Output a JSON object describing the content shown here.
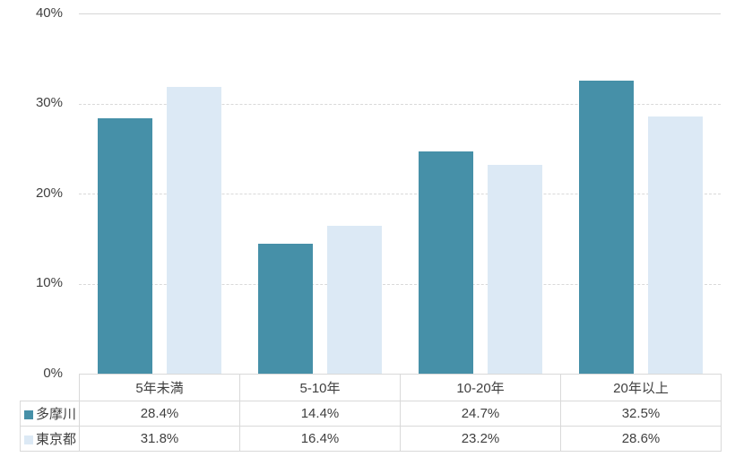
{
  "colors": {
    "series1": "#4690A8",
    "series2": "#DCE9F5",
    "gridline": "#D9D9D9",
    "table_border": "#D9D9D9",
    "text": "#3F3F3F",
    "background": "#FFFFFF"
  },
  "chart_data": {
    "type": "bar",
    "title": "",
    "xlabel": "",
    "ylabel": "",
    "categories": [
      "5年未満",
      "5-10年",
      "10-20年",
      "20年以上"
    ],
    "series": [
      {
        "name": "多摩川",
        "color": "#4690A8",
        "values": [
          28.4,
          14.4,
          24.7,
          32.5
        ]
      },
      {
        "name": "東京都",
        "color": "#DCE9F5",
        "values": [
          31.8,
          16.4,
          23.2,
          28.6
        ]
      }
    ],
    "ylim": [
      0,
      40
    ],
    "yticks": [
      {
        "label": "40%",
        "value": 40,
        "line": "solid"
      },
      {
        "label": "30%",
        "value": 30,
        "line": "dashed"
      },
      {
        "label": "20%",
        "value": 20,
        "line": "dashed"
      },
      {
        "label": "10%",
        "value": 10,
        "line": "dashed"
      },
      {
        "label": "0%",
        "value": 0,
        "line": "none"
      }
    ],
    "grid": true,
    "legend_position": "table-left"
  },
  "table": {
    "header": [
      "5年未満",
      "5-10年",
      "10-20年",
      "20年以上"
    ],
    "rows": [
      {
        "legend": "多摩川",
        "cells": [
          "28.4%",
          "14.4%",
          "24.7%",
          "32.5%"
        ]
      },
      {
        "legend": "東京都",
        "cells": [
          "31.8%",
          "16.4%",
          "23.2%",
          "28.6%"
        ]
      }
    ]
  }
}
